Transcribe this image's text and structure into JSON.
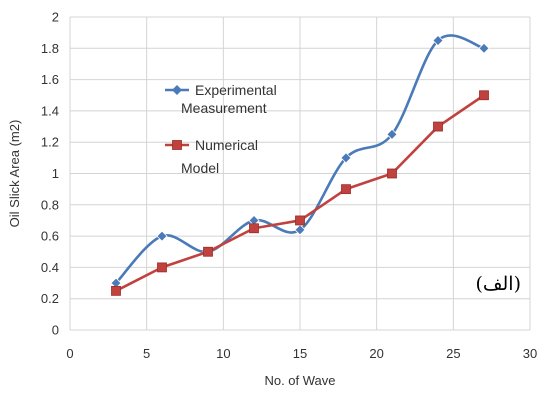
{
  "chart_data": {
    "type": "line",
    "xlabel": "No. of Wave",
    "ylabel": "Oil Slick Area (m2)",
    "xlim": [
      0,
      30
    ],
    "ylim": [
      0,
      2
    ],
    "xticks": [
      "0",
      "5",
      "10",
      "15",
      "20",
      "25",
      "30"
    ],
    "yticks": [
      "0",
      "0.2",
      "0.4",
      "0.6",
      "0.8",
      "1",
      "1.2",
      "1.4",
      "1.6",
      "1.8",
      "2"
    ],
    "grid": true,
    "legend_position": "upper-left inside plot",
    "series": [
      {
        "name_line1": "Experimental",
        "name_line2": "Measurement",
        "color": "#4a7ab8",
        "marker": "diamond",
        "smooth": true,
        "x": [
          3,
          6,
          9,
          12,
          15,
          18,
          21,
          24,
          27
        ],
        "y": [
          0.3,
          0.6,
          0.5,
          0.7,
          0.64,
          1.1,
          1.25,
          1.85,
          1.8
        ]
      },
      {
        "name_line1": "Numerical",
        "name_line2": "Model",
        "color": "#c0423e",
        "marker": "square",
        "smooth": false,
        "x": [
          3,
          6,
          9,
          12,
          15,
          18,
          21,
          24,
          27
        ],
        "y": [
          0.25,
          0.4,
          0.5,
          0.65,
          0.7,
          0.9,
          1.0,
          1.3,
          1.5
        ]
      }
    ],
    "annotation": "(الف)"
  }
}
